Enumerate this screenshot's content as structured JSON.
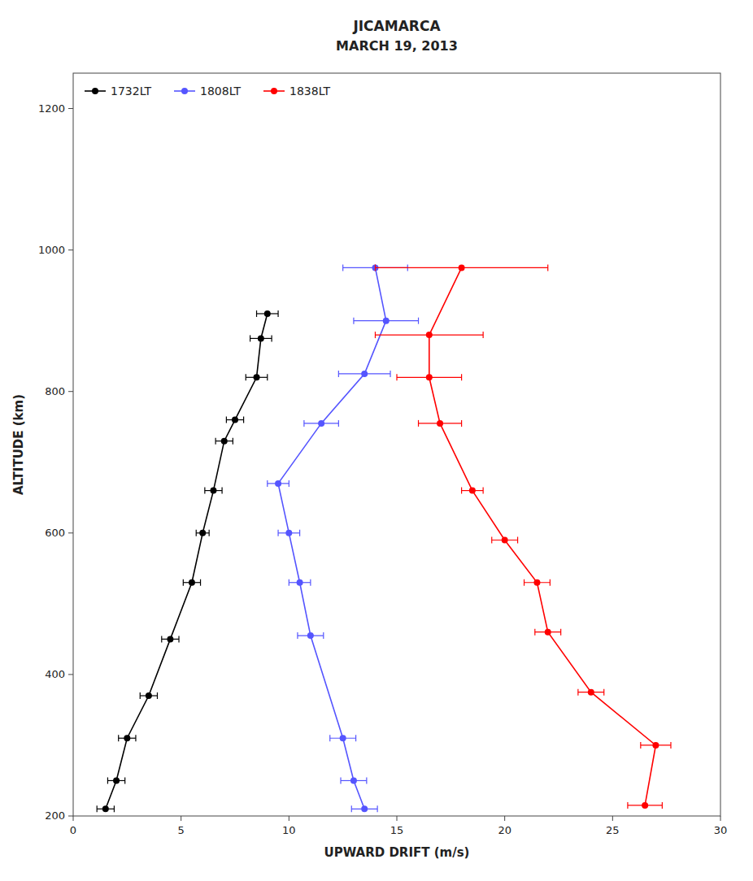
{
  "chart_data": {
    "type": "line",
    "title": "JICAMARCA",
    "subtitle": "MARCH 19, 2013",
    "x_label": "UPWARD DRIFT (m/s)",
    "y_label": "ALTITUDE (km)",
    "xlim": [
      0,
      30
    ],
    "ylim": [
      200,
      1250
    ],
    "xticks": [
      0,
      5,
      10,
      15,
      20,
      25,
      30
    ],
    "yticks": [
      200,
      400,
      600,
      800,
      1000,
      1200
    ],
    "grid": false,
    "legend": "upper-left",
    "series": [
      {
        "name": "1732LT",
        "color": "#000000",
        "marker": "circle",
        "line_style": "solid",
        "x": [
          1.5,
          2.0,
          2.5,
          3.5,
          4.5,
          5.5,
          6.0,
          6.5,
          7.0,
          7.5,
          8.5,
          8.7,
          9.0
        ],
        "values": [
          210,
          250,
          310,
          370,
          450,
          530,
          600,
          660,
          730,
          760,
          820,
          875,
          910
        ],
        "xerr": [
          0.4,
          0.4,
          0.4,
          0.4,
          0.4,
          0.4,
          0.3,
          0.4,
          0.4,
          0.4,
          0.5,
          0.5,
          0.5
        ]
      },
      {
        "name": "1808LT",
        "color": "#5555ff",
        "marker": "circle",
        "line_style": "solid",
        "x": [
          13.5,
          13.0,
          12.5,
          11.0,
          10.5,
          10.0,
          9.5,
          11.5,
          13.5,
          14.5,
          14.0
        ],
        "values": [
          210,
          250,
          310,
          455,
          530,
          600,
          670,
          755,
          825,
          900,
          975
        ],
        "xerr": [
          0.6,
          0.6,
          0.6,
          0.6,
          0.5,
          0.5,
          0.5,
          0.8,
          1.2,
          1.5,
          1.5
        ]
      },
      {
        "name": "1838LT",
        "color": "#ff0000",
        "marker": "circle",
        "line_style": "solid",
        "x": [
          26.5,
          27.0,
          24.0,
          22.0,
          21.5,
          20.0,
          18.5,
          17.0,
          16.5,
          16.5,
          18.0
        ],
        "values": [
          215,
          300,
          375,
          460,
          530,
          590,
          660,
          755,
          820,
          880,
          975
        ],
        "xerr": [
          0.8,
          0.7,
          0.6,
          0.6,
          0.6,
          0.6,
          0.5,
          1.0,
          1.5,
          2.5,
          4.0
        ]
      }
    ]
  }
}
